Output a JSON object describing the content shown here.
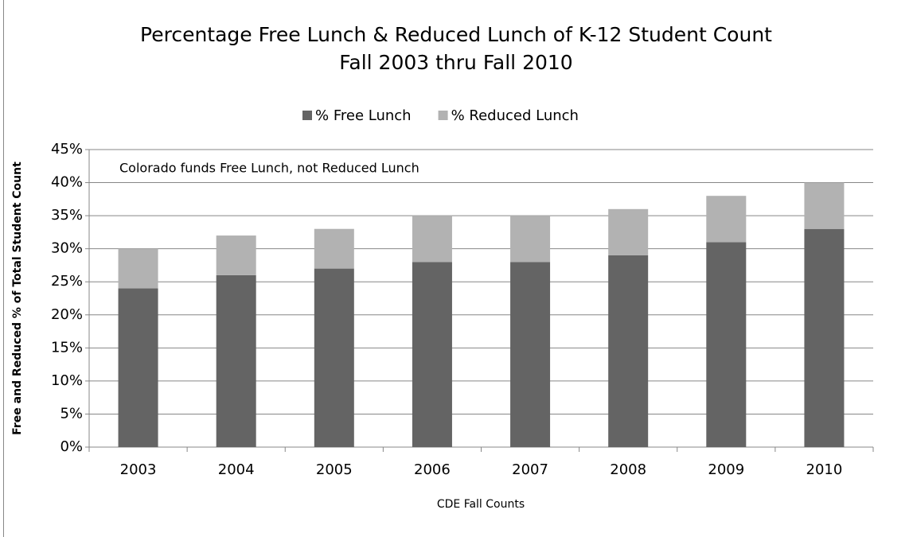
{
  "chart_data": {
    "type": "stacked_bar",
    "title": "Percentage Free Lunch & Reduced Lunch of K-12 Student Count",
    "subtitle": "Fall 2003 thru Fall 2010",
    "annotation": "Colorado funds Free Lunch, not Reduced Lunch",
    "x_label": "CDE Fall Counts",
    "y_label": "Free and Reduced % of Total Student Count",
    "categories": [
      "2003",
      "2004",
      "2005",
      "2006",
      "2007",
      "2008",
      "2009",
      "2010"
    ],
    "series": [
      {
        "name": "% Free Lunch",
        "color": "#646464",
        "values": [
          24,
          26,
          27,
          28,
          28,
          29,
          31,
          33
        ]
      },
      {
        "name": "% Reduced Lunch",
        "color": "#b2b2b2",
        "values": [
          6,
          6,
          6,
          7,
          7,
          7,
          7,
          7
        ]
      }
    ],
    "ylim": [
      0,
      45
    ],
    "yticks": [
      {
        "value": 0,
        "label": "0%"
      },
      {
        "value": 5,
        "label": "5%"
      },
      {
        "value": 10,
        "label": "10%"
      },
      {
        "value": 15,
        "label": "15%"
      },
      {
        "value": 20,
        "label": "20%"
      },
      {
        "value": 25,
        "label": "25%"
      },
      {
        "value": 30,
        "label": "30%"
      },
      {
        "value": 35,
        "label": "35%"
      },
      {
        "value": 40,
        "label": "40%"
      },
      {
        "value": 45,
        "label": "45%"
      }
    ],
    "grid": true,
    "legend": "top"
  }
}
